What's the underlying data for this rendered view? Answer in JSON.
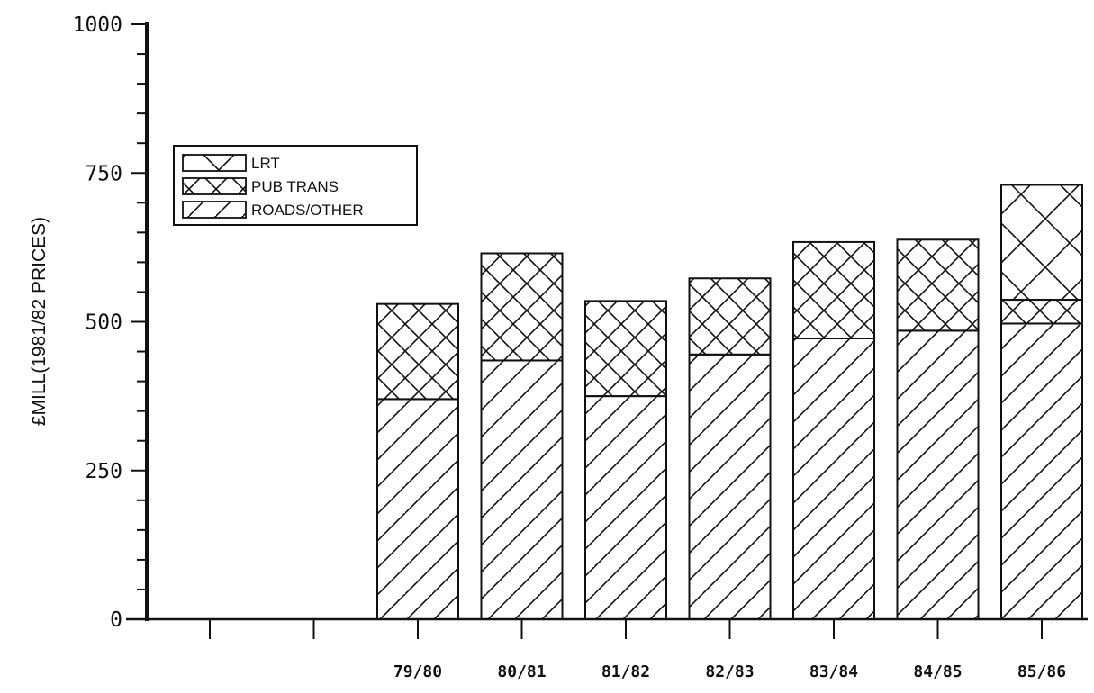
{
  "chart_data": {
    "type": "bar",
    "stacked": true,
    "title": "",
    "xlabel": "",
    "ylabel": "£MILL(1981/82 PRICES)",
    "ylim": [
      0,
      1000
    ],
    "yticks": [
      0,
      250,
      500,
      750,
      1000
    ],
    "y_tick_labels": [
      "0",
      "250",
      "500",
      "750",
      "1000"
    ],
    "y_minor_step": 50,
    "slots": [
      "",
      "",
      "79/80",
      "80/81",
      "81/82",
      "82/83",
      "83/84",
      "84/85",
      "85/86"
    ],
    "categories": [
      "79/80",
      "80/81",
      "81/82",
      "82/83",
      "83/84",
      "84/85",
      "85/86"
    ],
    "series": [
      {
        "name": "ROADS/OTHER",
        "pattern": "diagonal-hatch",
        "values": [
          370,
          435,
          375,
          445,
          472,
          485,
          497
        ]
      },
      {
        "name": "PUB TRANS",
        "pattern": "cross-hatch",
        "values": [
          160,
          180,
          160,
          128,
          162,
          153,
          40
        ]
      },
      {
        "name": "LRT",
        "pattern": "large-cross-hatch",
        "values": [
          0,
          0,
          0,
          0,
          0,
          0,
          193
        ]
      }
    ],
    "legend": {
      "position": "upper-left",
      "entries": [
        {
          "label": "LRT",
          "pattern": "large-cross-hatch"
        },
        {
          "label": "PUB TRANS",
          "pattern": "cross-hatch"
        },
        {
          "label": "ROADS/OTHER",
          "pattern": "diagonal-hatch"
        }
      ]
    },
    "grid": false,
    "colors": {
      "ink": "#111111",
      "background": "#ffffff"
    }
  }
}
